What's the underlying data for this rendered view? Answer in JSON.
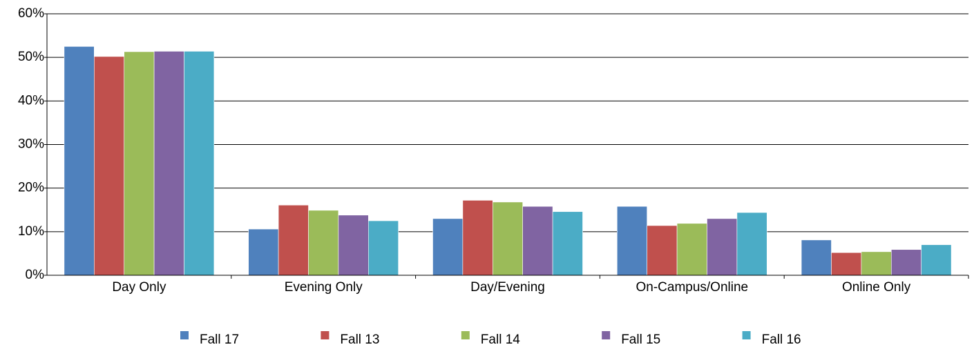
{
  "chart_data": {
    "type": "bar",
    "categories": [
      "Day Only",
      "Evening Only",
      "Day/Evening",
      "On-Campus/Online",
      "Online Only"
    ],
    "series": [
      {
        "name": "Fall 17",
        "color": "#4f81bd",
        "values": [
          52.5,
          10.6,
          13.0,
          15.8,
          8.1
        ]
      },
      {
        "name": "Fall 13",
        "color": "#c0504d",
        "values": [
          50.2,
          16.1,
          17.2,
          11.4,
          5.2
        ]
      },
      {
        "name": "Fall 14",
        "color": "#9bbb59",
        "values": [
          51.3,
          14.9,
          16.8,
          11.9,
          5.4
        ]
      },
      {
        "name": "Fall 15",
        "color": "#8064a2",
        "values": [
          51.4,
          13.8,
          15.8,
          13.0,
          5.9
        ]
      },
      {
        "name": "Fall 16",
        "color": "#4bacc6",
        "values": [
          51.4,
          12.5,
          14.6,
          14.4,
          7.0
        ]
      }
    ],
    "ylim": [
      0,
      60
    ],
    "yticks": [
      {
        "value": 0,
        "label": "0%"
      },
      {
        "value": 10,
        "label": "10%"
      },
      {
        "value": 20,
        "label": "20%"
      },
      {
        "value": 30,
        "label": "30%"
      },
      {
        "value": 40,
        "label": "40%"
      },
      {
        "value": 50,
        "label": "50%"
      },
      {
        "value": 60,
        "label": "60%"
      }
    ],
    "grid": true,
    "legend": "bottom"
  }
}
